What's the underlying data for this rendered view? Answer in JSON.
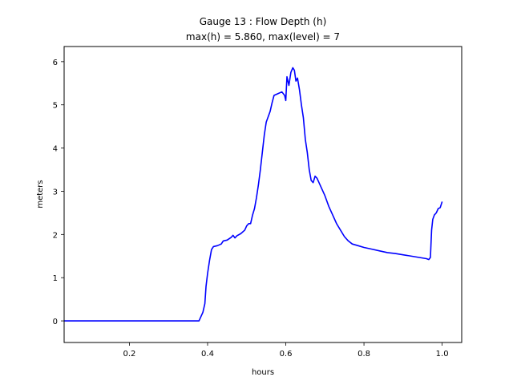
{
  "chart_data": {
    "type": "line",
    "title_line1": "Gauge 13 : Flow Depth (h)",
    "title_line2": "max(h) =   5.860,    max(level) = 7",
    "xlabel": "hours",
    "ylabel": "meters",
    "xlim": [
      0.033,
      1.05
    ],
    "ylim": [
      -0.5,
      6.35
    ],
    "xticks": [
      0.2,
      0.4,
      0.6,
      0.8,
      1.0
    ],
    "xtick_labels": [
      "0.2",
      "0.4",
      "0.6",
      "0.8",
      "1.0"
    ],
    "yticks": [
      0,
      1,
      2,
      3,
      4,
      5,
      6
    ],
    "ytick_labels": [
      "0",
      "1",
      "2",
      "3",
      "4",
      "5",
      "6"
    ],
    "grid": false,
    "series": [
      {
        "color": "#0000ff",
        "points": [
          [
            0.033,
            0.0
          ],
          [
            0.1,
            0.0
          ],
          [
            0.2,
            0.0
          ],
          [
            0.3,
            0.0
          ],
          [
            0.378,
            0.0
          ],
          [
            0.383,
            0.1
          ],
          [
            0.388,
            0.2
          ],
          [
            0.393,
            0.4
          ],
          [
            0.396,
            0.8
          ],
          [
            0.4,
            1.1
          ],
          [
            0.405,
            1.4
          ],
          [
            0.41,
            1.65
          ],
          [
            0.415,
            1.72
          ],
          [
            0.425,
            1.74
          ],
          [
            0.435,
            1.78
          ],
          [
            0.44,
            1.85
          ],
          [
            0.45,
            1.87
          ],
          [
            0.46,
            1.93
          ],
          [
            0.465,
            1.98
          ],
          [
            0.47,
            1.92
          ],
          [
            0.475,
            1.97
          ],
          [
            0.485,
            2.02
          ],
          [
            0.495,
            2.1
          ],
          [
            0.5,
            2.2
          ],
          [
            0.505,
            2.25
          ],
          [
            0.51,
            2.25
          ],
          [
            0.515,
            2.45
          ],
          [
            0.52,
            2.6
          ],
          [
            0.525,
            2.85
          ],
          [
            0.53,
            3.15
          ],
          [
            0.535,
            3.5
          ],
          [
            0.54,
            3.9
          ],
          [
            0.545,
            4.3
          ],
          [
            0.55,
            4.6
          ],
          [
            0.56,
            4.85
          ],
          [
            0.565,
            5.05
          ],
          [
            0.57,
            5.22
          ],
          [
            0.58,
            5.26
          ],
          [
            0.59,
            5.3
          ],
          [
            0.597,
            5.22
          ],
          [
            0.6,
            5.1
          ],
          [
            0.603,
            5.65
          ],
          [
            0.608,
            5.45
          ],
          [
            0.613,
            5.75
          ],
          [
            0.618,
            5.86
          ],
          [
            0.622,
            5.8
          ],
          [
            0.626,
            5.55
          ],
          [
            0.63,
            5.62
          ],
          [
            0.635,
            5.35
          ],
          [
            0.64,
            5.0
          ],
          [
            0.645,
            4.7
          ],
          [
            0.65,
            4.2
          ],
          [
            0.655,
            3.9
          ],
          [
            0.66,
            3.5
          ],
          [
            0.665,
            3.25
          ],
          [
            0.67,
            3.2
          ],
          [
            0.675,
            3.35
          ],
          [
            0.68,
            3.3
          ],
          [
            0.69,
            3.1
          ],
          [
            0.7,
            2.9
          ],
          [
            0.71,
            2.65
          ],
          [
            0.72,
            2.45
          ],
          [
            0.73,
            2.25
          ],
          [
            0.74,
            2.1
          ],
          [
            0.75,
            1.95
          ],
          [
            0.76,
            1.85
          ],
          [
            0.77,
            1.78
          ],
          [
            0.785,
            1.74
          ],
          [
            0.8,
            1.7
          ],
          [
            0.82,
            1.66
          ],
          [
            0.84,
            1.62
          ],
          [
            0.86,
            1.58
          ],
          [
            0.88,
            1.56
          ],
          [
            0.9,
            1.53
          ],
          [
            0.92,
            1.5
          ],
          [
            0.94,
            1.47
          ],
          [
            0.96,
            1.44
          ],
          [
            0.966,
            1.42
          ],
          [
            0.97,
            1.47
          ],
          [
            0.973,
            2.1
          ],
          [
            0.976,
            2.35
          ],
          [
            0.98,
            2.45
          ],
          [
            0.985,
            2.5
          ],
          [
            0.99,
            2.6
          ],
          [
            0.995,
            2.62
          ],
          [
            1.0,
            2.76
          ]
        ]
      }
    ]
  }
}
